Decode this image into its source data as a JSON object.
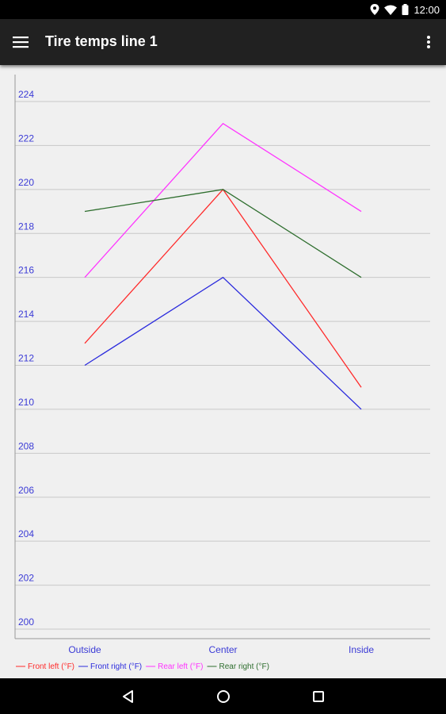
{
  "status_bar": {
    "time": "12:00"
  },
  "app_bar": {
    "title": "Tire temps line 1"
  },
  "colors": {
    "front_left": "#ff2a2a",
    "front_right": "#2b2bdd",
    "rear_left": "#ff33ff",
    "rear_right": "#2e6e2e",
    "axis_text": "#3b3bd6",
    "grid": "#c8c8c8"
  },
  "chart_data": {
    "type": "line",
    "categories": [
      "Outside",
      "Center",
      "Inside"
    ],
    "ylim": [
      200,
      224
    ],
    "yticks": [
      200,
      202,
      204,
      206,
      208,
      210,
      212,
      214,
      216,
      218,
      220,
      222,
      224
    ],
    "grid": true,
    "legend_placement": "bottom-left",
    "series": [
      {
        "name": "Front left (°F)",
        "color": "#ff2a2a",
        "values": [
          213,
          220,
          211
        ]
      },
      {
        "name": "Front right (°F)",
        "color": "#2b2bdd",
        "values": [
          212,
          216,
          210
        ]
      },
      {
        "name": "Rear left (°F)",
        "color": "#ff33ff",
        "values": [
          216,
          223,
          219
        ]
      },
      {
        "name": "Rear right (°F)",
        "color": "#2e6e2e",
        "values": [
          219,
          220,
          216
        ]
      }
    ]
  }
}
